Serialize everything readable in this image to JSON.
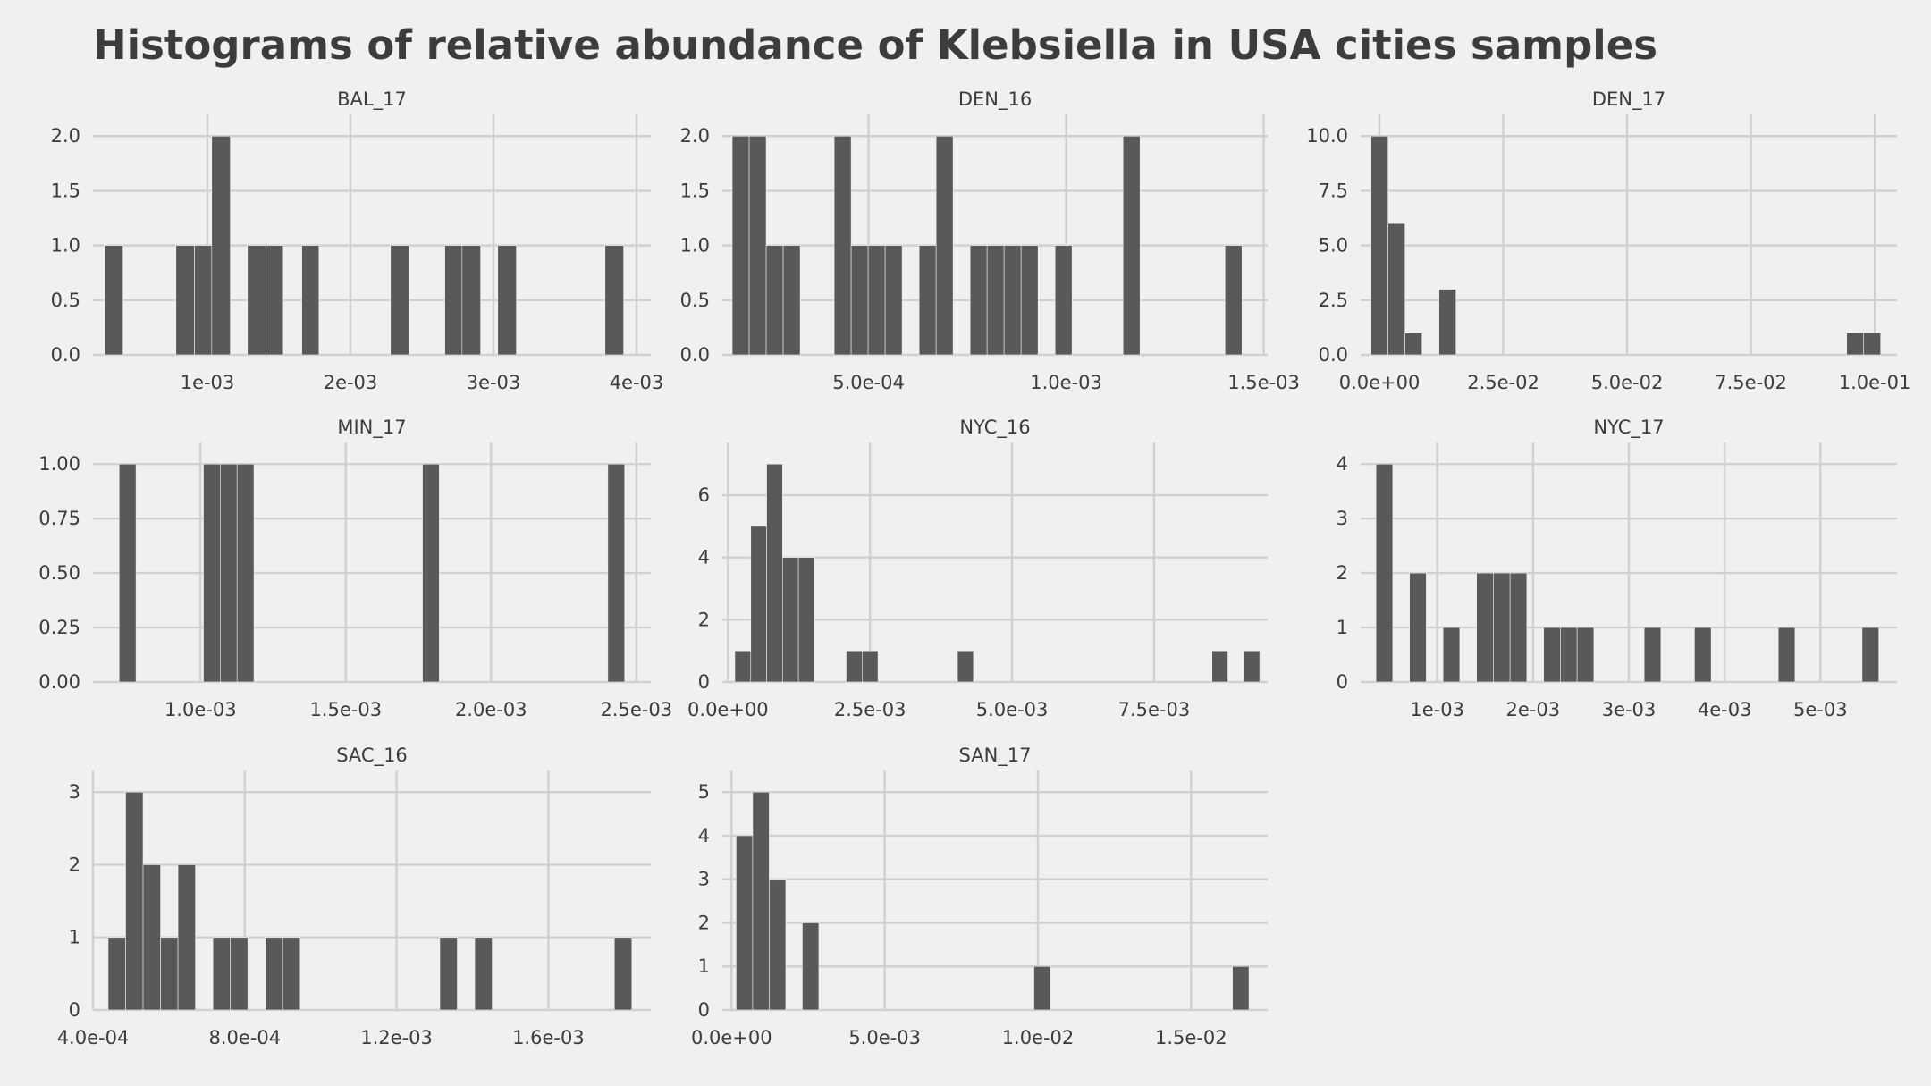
{
  "title": "Histograms of relative abundance of Klebsiella in USA cities samples",
  "colors": {
    "background": "#f0f0f0",
    "bar": "#595959",
    "grid": "#d0d0d0",
    "text": "#3c3c3c"
  },
  "chart_data": [
    {
      "type": "bar",
      "subtitle": "BAL_17",
      "bin_edges": [
        0.00028,
        0.00041,
        0.00053,
        0.00066,
        0.00078,
        0.00091,
        0.00103,
        0.00116,
        0.00128,
        0.00141,
        0.00153,
        0.00166,
        0.00178,
        0.00191,
        0.00203,
        0.00216,
        0.00228,
        0.00241,
        0.00253,
        0.00266,
        0.00278,
        0.00291,
        0.00303,
        0.00316,
        0.00328,
        0.00341,
        0.00353,
        0.00366,
        0.00378,
        0.00391,
        0.00403
      ],
      "counts": [
        1,
        0,
        0,
        0,
        1,
        1,
        2,
        0,
        1,
        1,
        0,
        1,
        0,
        0,
        0,
        0,
        1,
        0,
        0,
        1,
        1,
        0,
        1,
        0,
        0,
        0,
        0,
        0,
        1,
        0
      ],
      "xlim": [
        0.0002,
        0.0041
      ],
      "ylim": [
        0,
        2.1
      ],
      "xticks": [
        0.001,
        0.002,
        0.003,
        0.004
      ],
      "xticklabels": [
        "1e-03",
        "2e-03",
        "3e-03",
        "4e-03"
      ],
      "yticks": [
        0,
        0.5,
        1,
        1.5,
        2
      ],
      "yticklabels": [
        "0.0",
        "0.5",
        "1.0",
        "1.5",
        "2.0"
      ]
    },
    {
      "type": "bar",
      "subtitle": "DEN_16",
      "bin_edges": [
        0.000155,
        0.000198,
        0.000241,
        0.000284,
        0.000327,
        0.00037,
        0.000413,
        0.000456,
        0.000499,
        0.000542,
        0.000585,
        0.000628,
        0.000671,
        0.000714,
        0.000757,
        0.0008,
        0.000843,
        0.000886,
        0.000929,
        0.000972,
        0.001015,
        0.001058,
        0.001101,
        0.001144,
        0.001187,
        0.00123,
        0.001273,
        0.001316,
        0.001359,
        0.001402,
        0.001445
      ],
      "counts": [
        2,
        2,
        1,
        1,
        0,
        0,
        2,
        1,
        1,
        1,
        0,
        1,
        2,
        0,
        1,
        1,
        1,
        1,
        0,
        1,
        0,
        0,
        0,
        2,
        0,
        0,
        0,
        0,
        0,
        1
      ],
      "xlim": [
        0.00013,
        0.00151
      ],
      "ylim": [
        0,
        2.1
      ],
      "xticks": [
        0.0005,
        0.001,
        0.0015
      ],
      "xticklabels": [
        "5.0e-04",
        "1.0e-03",
        "1.5e-03"
      ],
      "yticks": [
        0,
        0.5,
        1,
        1.5,
        2
      ],
      "yticklabels": [
        "0.0",
        "0.5",
        "1.0",
        "1.5",
        "2.0"
      ]
    },
    {
      "type": "bar",
      "subtitle": "DEN_17",
      "bin_edges": [
        -0.0017,
        0.00173,
        0.00516,
        0.00859,
        0.01202,
        0.01545,
        0.01888,
        0.02231,
        0.02574,
        0.02917,
        0.0326,
        0.03603,
        0.03946,
        0.04289,
        0.04632,
        0.04975,
        0.05318,
        0.05661,
        0.06004,
        0.06347,
        0.0669,
        0.07033,
        0.07376,
        0.07719,
        0.08062,
        0.08405,
        0.08748,
        0.09091,
        0.09434,
        0.09777,
        0.1012
      ],
      "counts": [
        10,
        6,
        1,
        0,
        3,
        0,
        0,
        0,
        0,
        0,
        0,
        0,
        0,
        0,
        0,
        0,
        0,
        0,
        0,
        0,
        0,
        0,
        0,
        0,
        0,
        0,
        0,
        0,
        1,
        1
      ],
      "xlim": [
        -0.0038,
        0.1045
      ],
      "ylim": [
        0,
        10.5
      ],
      "xticks": [
        0,
        0.025,
        0.05,
        0.075,
        0.1
      ],
      "xticklabels": [
        "0.0e+00",
        "2.5e-02",
        "5.0e-02",
        "7.5e-02",
        "1.0e-01"
      ],
      "yticks": [
        0,
        2.5,
        5,
        7.5,
        10
      ],
      "yticklabels": [
        "0.0",
        "2.5",
        "5.0",
        "7.5",
        "10.0"
      ]
    },
    {
      "type": "bar",
      "subtitle": "MIN_17",
      "bin_edges": [
        0.00072,
        0.000778,
        0.000836,
        0.000894,
        0.000952,
        0.00101,
        0.001068,
        0.001126,
        0.001184,
        0.001242,
        0.0013,
        0.001358,
        0.001416,
        0.001474,
        0.001532,
        0.00159,
        0.001648,
        0.001706,
        0.001764,
        0.001822,
        0.00188,
        0.001938,
        0.001996,
        0.002054,
        0.002112,
        0.00217,
        0.002228,
        0.002286,
        0.002344,
        0.002402,
        0.00246
      ],
      "counts": [
        1,
        0,
        0,
        0,
        0,
        1,
        1,
        1,
        0,
        0,
        0,
        0,
        0,
        0,
        0,
        0,
        0,
        0,
        1,
        0,
        0,
        0,
        0,
        0,
        0,
        0,
        0,
        0,
        0,
        1
      ],
      "xlim": [
        0.00063,
        0.00255
      ],
      "ylim": [
        0,
        1.05
      ],
      "xticks": [
        0.001,
        0.0015,
        0.002,
        0.0025
      ],
      "xticklabels": [
        "1.0e-03",
        "1.5e-03",
        "2.0e-03",
        "2.5e-03"
      ],
      "yticks": [
        0,
        0.25,
        0.5,
        0.75,
        1
      ],
      "yticklabels": [
        "0.00",
        "0.25",
        "0.50",
        "0.75",
        "1.00"
      ]
    },
    {
      "type": "bar",
      "subtitle": "NYC_16",
      "bin_edges": [
        0.00012,
        0.0004,
        0.00068,
        0.00096,
        0.00124,
        0.00152,
        0.0018,
        0.00208,
        0.00236,
        0.00264,
        0.00292,
        0.0032,
        0.00348,
        0.00376,
        0.00404,
        0.00432,
        0.0046,
        0.00488,
        0.00516,
        0.00544,
        0.00572,
        0.006,
        0.00628,
        0.00656,
        0.00684,
        0.00712,
        0.0074,
        0.00768,
        0.00796,
        0.00824,
        0.00852,
        0.0088,
        0.00908,
        0.00936
      ],
      "counts": [
        1,
        5,
        7,
        4,
        4,
        0,
        0,
        1,
        1,
        0,
        0,
        0,
        0,
        0,
        1,
        0,
        0,
        0,
        0,
        0,
        0,
        0,
        0,
        0,
        0,
        0,
        0,
        0,
        0,
        0,
        1,
        0,
        1
      ],
      "xlim": [
        -0.0001,
        0.0095
      ],
      "ylim": [
        0,
        7.35
      ],
      "xticks": [
        0,
        0.0025,
        0.005,
        0.0075
      ],
      "xticklabels": [
        "0.0e+00",
        "2.5e-03",
        "5.0e-03",
        "7.5e-03"
      ],
      "yticks": [
        0,
        2,
        4,
        6
      ],
      "yticklabels": [
        "0",
        "2",
        "4",
        "6"
      ]
    },
    {
      "type": "bar",
      "subtitle": "NYC_17",
      "bin_edges": [
        0.00036,
        0.000535,
        0.00071,
        0.000885,
        0.00106,
        0.001235,
        0.00141,
        0.001585,
        0.00176,
        0.001935,
        0.00211,
        0.002285,
        0.00246,
        0.002635,
        0.00281,
        0.002985,
        0.00316,
        0.003335,
        0.00351,
        0.003685,
        0.00386,
        0.004035,
        0.00421,
        0.004385,
        0.00456,
        0.004735,
        0.00491,
        0.005085,
        0.00526,
        0.005435,
        0.00561
      ],
      "counts": [
        4,
        0,
        2,
        0,
        1,
        0,
        2,
        2,
        2,
        0,
        1,
        1,
        1,
        0,
        0,
        0,
        1,
        0,
        0,
        1,
        0,
        0,
        0,
        0,
        1,
        0,
        0,
        0,
        0,
        1
      ],
      "xlim": [
        0.0002,
        0.0058
      ],
      "ylim": [
        0,
        4.2
      ],
      "xticks": [
        0.001,
        0.002,
        0.003,
        0.004,
        0.005
      ],
      "xticklabels": [
        "1e-03",
        "2e-03",
        "3e-03",
        "4e-03",
        "5e-03"
      ],
      "yticks": [
        0,
        1,
        2,
        3,
        4
      ],
      "yticklabels": [
        "0",
        "1",
        "2",
        "3",
        "4"
      ]
    },
    {
      "type": "bar",
      "subtitle": "SAC_16",
      "bin_edges": [
        0.00044,
        0.000486,
        0.000532,
        0.000578,
        0.000624,
        0.00067,
        0.000716,
        0.000762,
        0.000808,
        0.000854,
        0.0009,
        0.000946,
        0.000992,
        0.001038,
        0.001084,
        0.00113,
        0.001176,
        0.001222,
        0.001268,
        0.001314,
        0.00136,
        0.001406,
        0.001452,
        0.001498,
        0.001544,
        0.00159,
        0.001636,
        0.001682,
        0.001728,
        0.001774,
        0.00182
      ],
      "counts": [
        1,
        3,
        2,
        1,
        2,
        0,
        1,
        1,
        0,
        1,
        1,
        0,
        0,
        0,
        0,
        0,
        0,
        0,
        0,
        1,
        0,
        1,
        0,
        0,
        0,
        0,
        0,
        0,
        0,
        1
      ],
      "xlim": [
        0.0004,
        0.00187
      ],
      "ylim": [
        0,
        3.15
      ],
      "xticks": [
        0.0004,
        0.0008,
        0.0012,
        0.0016
      ],
      "xticklabels": [
        "4.0e-04",
        "8.0e-04",
        "1.2e-03",
        "1.6e-03"
      ],
      "yticks": [
        0,
        1,
        2,
        3
      ],
      "yticklabels": [
        "0",
        "1",
        "2",
        "3"
      ]
    },
    {
      "type": "bar",
      "subtitle": "SAN_17",
      "bin_edges": [
        0.00015,
        0.00069,
        0.00123,
        0.00177,
        0.00231,
        0.00285,
        0.00339,
        0.00393,
        0.00447,
        0.00501,
        0.00555,
        0.00609,
        0.00663,
        0.00717,
        0.00771,
        0.00825,
        0.00879,
        0.00933,
        0.00987,
        0.01041,
        0.01095,
        0.01149,
        0.01203,
        0.01257,
        0.01311,
        0.01365,
        0.01419,
        0.01473,
        0.01527,
        0.01581,
        0.01635,
        0.01689
      ],
      "counts": [
        4,
        5,
        3,
        0,
        2,
        0,
        0,
        0,
        0,
        0,
        0,
        0,
        0,
        0,
        0,
        0,
        0,
        0,
        1,
        0,
        0,
        0,
        0,
        0,
        0,
        0,
        0,
        0,
        0,
        0,
        1
      ],
      "xlim": [
        -0.0003,
        0.0175
      ],
      "ylim": [
        0,
        5.25
      ],
      "xticks": [
        0,
        0.005,
        0.01,
        0.015
      ],
      "xticklabels": [
        "0.0e+00",
        "5.0e-03",
        "1.0e-02",
        "1.5e-02"
      ],
      "yticks": [
        0,
        1,
        2,
        3,
        4,
        5
      ],
      "yticklabels": [
        "0",
        "1",
        "2",
        "3",
        "4",
        "5"
      ]
    }
  ]
}
